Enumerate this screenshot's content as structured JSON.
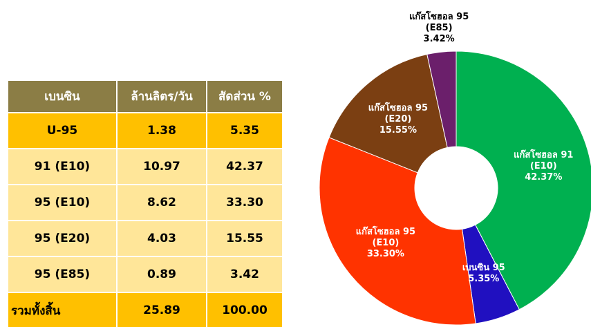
{
  "table": {
    "header": [
      "เบนซิน",
      "ล้านลิตร/วัน",
      "สัดส่วน %"
    ],
    "rows": [
      [
        "U-95",
        "1.38",
        "5.35"
      ],
      [
        "91 (E10)",
        "10.97",
        "42.37"
      ],
      [
        "95 (E10)",
        "8.62",
        "33.30"
      ],
      [
        "95 (E20)",
        "4.03",
        "15.55"
      ],
      [
        "95 (E85)",
        "0.89",
        "3.42"
      ],
      [
        "รวมทั้งสิ้น",
        "25.89",
        "100.00"
      ]
    ]
  },
  "chart_data": {
    "type": "donut",
    "categories": [
      "แก๊สโซฮอล 91 (E10)",
      "เบนซิน 95",
      "แก๊สโซฮอล 95 (E10)",
      "แก๊สโซฮอล 95 (E20)",
      "แก๊สโซฮอล 95 (E85)"
    ],
    "values": [
      42.37,
      5.35,
      33.3,
      15.55,
      3.42
    ],
    "value_labels": [
      "42.37%",
      "5.35%",
      "33.30%",
      "15.55%",
      "3.42%"
    ],
    "colors": [
      "#00b050",
      "#2010c0",
      "#ff3300",
      "#7b3f12",
      "#6b1f6b"
    ]
  }
}
